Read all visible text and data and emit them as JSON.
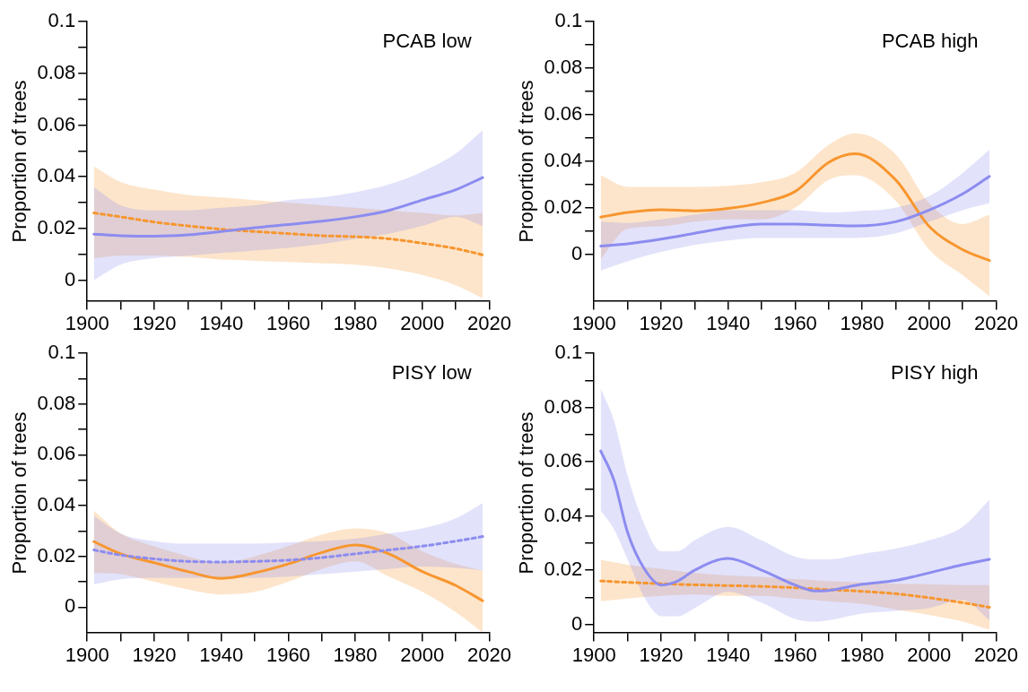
{
  "chart_data": [
    {
      "type": "line",
      "ylabel": "Proportion of trees",
      "annotations": [
        "PCAB low"
      ],
      "xlim": [
        1900,
        2020
      ],
      "ylim": [
        -0.008,
        0.1
      ],
      "xticks": [
        1900,
        {
          "value": 1910,
          "label": null
        },
        1920,
        {
          "value": 1930,
          "label": null
        },
        1940,
        {
          "value": 1950,
          "label": null
        },
        1960,
        {
          "value": 1970,
          "label": null
        },
        1980,
        {
          "value": 1990,
          "label": null
        },
        2000,
        {
          "value": 2010,
          "label": null
        },
        2020
      ],
      "yticks": [
        0,
        {
          "value": 0.01,
          "label": null
        },
        0.02,
        {
          "value": 0.03,
          "label": null
        },
        0.04,
        {
          "value": 0.05,
          "label": null
        },
        0.06,
        {
          "value": 0.07,
          "label": null
        },
        0.08,
        {
          "value": 0.09,
          "label": null
        },
        0.1
      ],
      "grid": false,
      "legend": false,
      "marker": "none",
      "x": [
        1902,
        1910,
        1920,
        1930,
        1940,
        1950,
        1960,
        1970,
        1980,
        1990,
        2000,
        2010,
        2018
      ],
      "series": [
        {
          "color": "#8c8cf0",
          "line_style": "solid",
          "values": [
            0.0178,
            0.0172,
            0.017,
            0.0175,
            0.0188,
            0.0203,
            0.0215,
            0.0228,
            0.0245,
            0.027,
            0.031,
            0.035,
            0.0397
          ],
          "lower": [
            0,
            0.006,
            0.0085,
            0.0095,
            0.0105,
            0.0115,
            0.0125,
            0.014,
            0.016,
            0.018,
            0.021,
            0.0245,
            0.021
          ],
          "upper": [
            0.036,
            0.029,
            0.027,
            0.027,
            0.028,
            0.029,
            0.031,
            0.032,
            0.034,
            0.037,
            0.042,
            0.049,
            0.058
          ]
        },
        {
          "color": "#f7962f",
          "line_style": "dashed",
          "values": [
            0.026,
            0.0245,
            0.0225,
            0.021,
            0.0197,
            0.0188,
            0.018,
            0.0172,
            0.0168,
            0.016,
            0.0143,
            0.0122,
            0.0098
          ],
          "lower": [
            0.0085,
            0.0095,
            0.0095,
            0.009,
            0.008,
            0.0075,
            0.007,
            0.0065,
            0.006,
            0.0045,
            0.002,
            -0.002,
            -0.007
          ],
          "upper": [
            0.044,
            0.038,
            0.035,
            0.033,
            0.032,
            0.031,
            0.03,
            0.029,
            0.028,
            0.027,
            0.026,
            0.025,
            0.026
          ]
        }
      ]
    },
    {
      "type": "line",
      "ylabel": "Proportion of trees",
      "annotations": [
        "PCAB high"
      ],
      "xlim": [
        1900,
        2020
      ],
      "ylim": [
        -0.02,
        0.1
      ],
      "xticks": [
        1900,
        {
          "value": 1910,
          "label": null
        },
        1920,
        {
          "value": 1930,
          "label": null
        },
        1940,
        {
          "value": 1950,
          "label": null
        },
        1960,
        {
          "value": 1970,
          "label": null
        },
        1980,
        {
          "value": 1990,
          "label": null
        },
        2000,
        {
          "value": 2010,
          "label": null
        },
        2020
      ],
      "yticks": [
        0,
        {
          "value": 0.01,
          "label": null
        },
        0.02,
        {
          "value": 0.03,
          "label": null
        },
        0.04,
        {
          "value": 0.05,
          "label": null
        },
        0.06,
        {
          "value": 0.07,
          "label": null
        },
        0.08,
        {
          "value": 0.09,
          "label": null
        },
        0.1
      ],
      "grid": false,
      "legend": false,
      "marker": "none",
      "x": [
        1902,
        1910,
        1920,
        1930,
        1940,
        1950,
        1960,
        1970,
        1978,
        1990,
        2000,
        2010,
        2018
      ],
      "series": [
        {
          "color": "#8c8cf0",
          "line_style": "solid",
          "values": [
            0.0035,
            0.0045,
            0.0065,
            0.009,
            0.0115,
            0.013,
            0.013,
            0.0125,
            0.0122,
            0.014,
            0.019,
            0.026,
            0.0335
          ],
          "lower": [
            -0.007,
            -0.003,
            0.001,
            0.004,
            0.006,
            0.007,
            0.007,
            0.007,
            0.007,
            0.009,
            0.014,
            0.019,
            0.022
          ],
          "upper": [
            0.014,
            0.0135,
            0.015,
            0.017,
            0.019,
            0.019,
            0.019,
            0.018,
            0.0185,
            0.02,
            0.025,
            0.035,
            0.045
          ]
        },
        {
          "color": "#f7962f",
          "line_style": "solid",
          "values": [
            0.016,
            0.018,
            0.0192,
            0.0187,
            0.0197,
            0.0222,
            0.027,
            0.0395,
            0.0432,
            0.032,
            0.012,
            0.002,
            -0.0027
          ],
          "lower": [
            -0.002,
            0.011,
            0.012,
            0.014,
            0.015,
            0.015,
            0.02,
            0.032,
            0.034,
            0.023,
            0.002,
            -0.009,
            -0.018
          ],
          "upper": [
            0.034,
            0.029,
            0.029,
            0.029,
            0.0295,
            0.031,
            0.035,
            0.047,
            0.052,
            0.043,
            0.022,
            0.013,
            0.017
          ]
        }
      ]
    },
    {
      "type": "line",
      "ylabel": "Proportion of trees",
      "annotations": [
        "PISY low"
      ],
      "xlim": [
        1900,
        2020
      ],
      "ylim": [
        -0.01,
        0.1
      ],
      "xticks": [
        1900,
        {
          "value": 1910,
          "label": null
        },
        1920,
        {
          "value": 1930,
          "label": null
        },
        1940,
        {
          "value": 1950,
          "label": null
        },
        1960,
        {
          "value": 1970,
          "label": null
        },
        1980,
        {
          "value": 1990,
          "label": null
        },
        2000,
        {
          "value": 2010,
          "label": null
        },
        2020
      ],
      "yticks": [
        0,
        {
          "value": 0.01,
          "label": null
        },
        0.02,
        {
          "value": 0.03,
          "label": null
        },
        0.04,
        {
          "value": 0.05,
          "label": null
        },
        0.06,
        {
          "value": 0.07,
          "label": null
        },
        0.08,
        {
          "value": 0.09,
          "label": null
        },
        0.1
      ],
      "grid": false,
      "legend": false,
      "marker": "none",
      "x": [
        1902,
        1910,
        1920,
        1930,
        1940,
        1950,
        1960,
        1970,
        1980,
        1990,
        2000,
        2010,
        2018
      ],
      "series": [
        {
          "color": "#8c8cf0",
          "line_style": "dashed",
          "values": [
            0.0225,
            0.0205,
            0.019,
            0.018,
            0.0178,
            0.018,
            0.0185,
            0.0195,
            0.021,
            0.0225,
            0.024,
            0.026,
            0.0278
          ],
          "lower": [
            0.009,
            0.011,
            0.0115,
            0.0115,
            0.0115,
            0.0115,
            0.012,
            0.013,
            0.014,
            0.015,
            0.016,
            0.0155,
            0.0145
          ],
          "upper": [
            0.036,
            0.029,
            0.026,
            0.025,
            0.025,
            0.025,
            0.0255,
            0.026,
            0.027,
            0.029,
            0.031,
            0.035,
            0.041
          ]
        },
        {
          "color": "#f7962f",
          "line_style": "solid",
          "values": [
            0.0258,
            0.021,
            0.0175,
            0.014,
            0.0113,
            0.0135,
            0.017,
            0.0215,
            0.0245,
            0.021,
            0.014,
            0.0085,
            0.0025
          ],
          "lower": [
            0.0135,
            0.013,
            0.01,
            0.007,
            0.005,
            0.006,
            0.01,
            0.015,
            0.018,
            0.012,
            0.006,
            -0.002,
            -0.01
          ],
          "upper": [
            0.038,
            0.029,
            0.024,
            0.02,
            0.0175,
            0.02,
            0.024,
            0.0285,
            0.031,
            0.029,
            0.022,
            0.017,
            0.0145
          ]
        }
      ]
    },
    {
      "type": "line",
      "ylabel": "Proportion of trees",
      "annotations": [
        "PISY high"
      ],
      "xlim": [
        1900,
        2020
      ],
      "ylim": [
        -0.003,
        0.1
      ],
      "xticks": [
        1900,
        {
          "value": 1910,
          "label": null
        },
        1920,
        {
          "value": 1930,
          "label": null
        },
        1940,
        {
          "value": 1950,
          "label": null
        },
        1960,
        {
          "value": 1970,
          "label": null
        },
        1980,
        {
          "value": 1990,
          "label": null
        },
        2000,
        {
          "value": 2010,
          "label": null
        },
        2020
      ],
      "yticks": [
        0,
        {
          "value": 0.01,
          "label": null
        },
        0.02,
        {
          "value": 0.03,
          "label": null
        },
        0.04,
        {
          "value": 0.05,
          "label": null
        },
        0.06,
        {
          "value": 0.07,
          "label": null
        },
        0.08,
        {
          "value": 0.09,
          "label": null
        },
        0.1
      ],
      "grid": false,
      "legend": false,
      "marker": "none",
      "series": [
        {
          "color": "#8c8cf0",
          "line_style": "solid",
          "x": [
            1902,
            1906,
            1910,
            1915,
            1920,
            1925,
            1930,
            1940,
            1950,
            1960,
            1966,
            1970,
            1980,
            1990,
            2000,
            2010,
            2018
          ],
          "values": [
            0.064,
            0.053,
            0.034,
            0.0205,
            0.0145,
            0.016,
            0.02,
            0.0243,
            0.02,
            0.0145,
            0.0123,
            0.0125,
            0.0148,
            0.0162,
            0.019,
            0.022,
            0.024
          ],
          "lower": [
            0.042,
            0.035,
            0.024,
            0.01,
            0.003,
            0.003,
            0.006,
            0.012,
            0.008,
            0.002,
            0.001,
            0.0015,
            0.004,
            0.005,
            0.006,
            0.009,
            0.0015
          ],
          "upper": [
            0.087,
            0.075,
            0.055,
            0.037,
            0.027,
            0.027,
            0.031,
            0.036,
            0.031,
            0.025,
            0.024,
            0.024,
            0.026,
            0.028,
            0.031,
            0.036,
            0.046
          ]
        },
        {
          "color": "#f7962f",
          "line_style": "dashed",
          "x": [
            1902,
            1910,
            1920,
            1930,
            1940,
            1950,
            1960,
            1970,
            1980,
            1990,
            2000,
            2010,
            2018
          ],
          "values": [
            0.016,
            0.0155,
            0.015,
            0.0146,
            0.0143,
            0.014,
            0.0135,
            0.0128,
            0.0122,
            0.0113,
            0.0098,
            0.008,
            0.0063
          ],
          "lower": [
            0.0085,
            0.0095,
            0.0105,
            0.011,
            0.0105,
            0.0105,
            0.0095,
            0.0085,
            0.0075,
            0.0055,
            0.0035,
            0.001,
            -0.002
          ],
          "upper": [
            0.0238,
            0.022,
            0.0205,
            0.019,
            0.018,
            0.0175,
            0.0167,
            0.016,
            0.0155,
            0.015,
            0.0148,
            0.0145,
            0.0145
          ]
        }
      ]
    }
  ]
}
